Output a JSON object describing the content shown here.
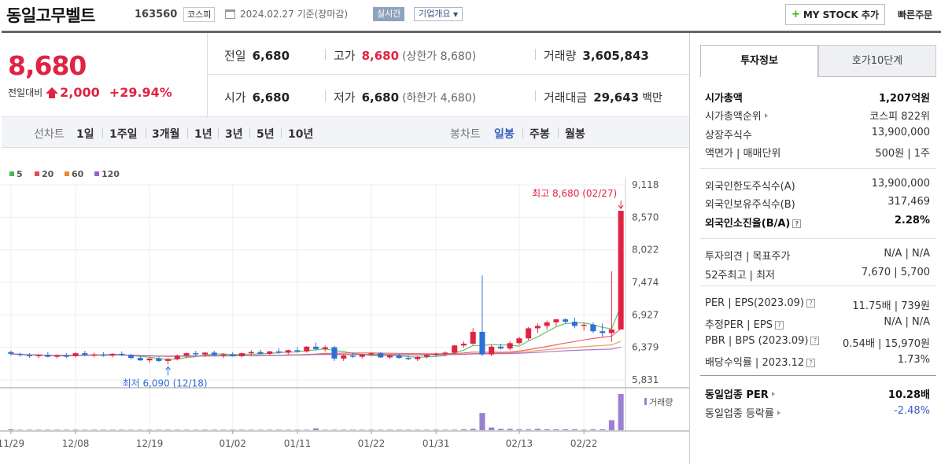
{
  "header": {
    "name": "동일고무벨트",
    "code": "163560",
    "market": "코스피",
    "date": "2024.02.27 기준(장마감)",
    "realtime": "실시간",
    "company": "기업개요",
    "mystock": "MY STOCK 추가",
    "fast_order": "빠른주문"
  },
  "price": {
    "current": "8,680",
    "compare_label": "전일대비",
    "change": "2,000",
    "change_pct": "+29.94%"
  },
  "stats": {
    "prev_label": "전일",
    "prev": "6,680",
    "high_label": "고가",
    "high": "8,680",
    "upper_limit": "(상한가 8,680)",
    "volume_label": "거래량",
    "volume": "3,605,843",
    "open_label": "시가",
    "open": "6,680",
    "low_label": "저가",
    "low": "6,680",
    "lower_limit": "(하한가 4,680)",
    "amount_label": "거래대금",
    "amount": "29,643",
    "amount_unit": "백만"
  },
  "period_bar": {
    "line_label": "선차트",
    "periods": [
      "1일",
      "1주일",
      "3개월",
      "1년",
      "3년",
      "5년",
      "10년"
    ],
    "candle_label": "봉차트",
    "candles": [
      "일봉",
      "주봉",
      "월봉"
    ]
  },
  "chart_data": {
    "type": "candlestick",
    "ma_legend": [
      "5",
      "20",
      "60",
      "120"
    ],
    "ma_colors": [
      "#4cb84c",
      "#e84a4a",
      "#f08a2c",
      "#9a5fd0"
    ],
    "up_color": "#e12343",
    "down_color": "#2f6ed8",
    "y_ticks": [
      "9,118",
      "8,570",
      "8,022",
      "7,474",
      "6,927",
      "6,379",
      "5,831"
    ],
    "ylim": [
      5831,
      9118
    ],
    "x_ticks": [
      "11/29",
      "12/08",
      "12/19",
      "01/02",
      "01/11",
      "01/22",
      "01/31",
      "02/13",
      "02/22"
    ],
    "max_annotation": "최고 8,680 (02/27)",
    "min_annotation": "최저 6,090 (12/18)",
    "volume_label": "거래량",
    "candles": [
      [
        6300,
        6320,
        6240,
        6270
      ],
      [
        6270,
        6290,
        6220,
        6250
      ],
      [
        6250,
        6280,
        6200,
        6230
      ],
      [
        6230,
        6260,
        6200,
        6250
      ],
      [
        6250,
        6300,
        6210,
        6220
      ],
      [
        6220,
        6260,
        6190,
        6240
      ],
      [
        6240,
        6280,
        6200,
        6230
      ],
      [
        6230,
        6300,
        6210,
        6280
      ],
      [
        6280,
        6320,
        6230,
        6250
      ],
      [
        6250,
        6290,
        6210,
        6260
      ],
      [
        6260,
        6300,
        6220,
        6240
      ],
      [
        6240,
        6280,
        6210,
        6270
      ],
      [
        6270,
        6310,
        6230,
        6250
      ],
      [
        6250,
        6270,
        6180,
        6200
      ],
      [
        6200,
        6240,
        6150,
        6160
      ],
      [
        6160,
        6210,
        6120,
        6190
      ],
      [
        6190,
        6220,
        6130,
        6150
      ],
      [
        6150,
        6200,
        6090,
        6180
      ],
      [
        6180,
        6260,
        6160,
        6240
      ],
      [
        6240,
        6290,
        6200,
        6280
      ],
      [
        6280,
        6320,
        6240,
        6260
      ],
      [
        6260,
        6300,
        6220,
        6290
      ],
      [
        6290,
        6320,
        6230,
        6250
      ],
      [
        6250,
        6280,
        6200,
        6260
      ],
      [
        6260,
        6300,
        6220,
        6230
      ],
      [
        6230,
        6290,
        6210,
        6280
      ],
      [
        6280,
        6330,
        6250,
        6300
      ],
      [
        6300,
        6340,
        6260,
        6270
      ],
      [
        6270,
        6320,
        6250,
        6310
      ],
      [
        6310,
        6360,
        6270,
        6290
      ],
      [
        6290,
        6340,
        6260,
        6330
      ],
      [
        6330,
        6380,
        6290,
        6310
      ],
      [
        6310,
        6400,
        6290,
        6390
      ],
      [
        6390,
        6460,
        6330,
        6350
      ],
      [
        6350,
        6410,
        6310,
        6380
      ],
      [
        6380,
        6400,
        6150,
        6190
      ],
      [
        6190,
        6260,
        6150,
        6240
      ],
      [
        6240,
        6290,
        6200,
        6220
      ],
      [
        6220,
        6270,
        6190,
        6260
      ],
      [
        6260,
        6300,
        6230,
        6280
      ],
      [
        6280,
        6300,
        6200,
        6210
      ],
      [
        6210,
        6260,
        6180,
        6240
      ],
      [
        6240,
        6270,
        6190,
        6200
      ],
      [
        6200,
        6240,
        6160,
        6180
      ],
      [
        6180,
        6230,
        6150,
        6220
      ],
      [
        6220,
        6270,
        6190,
        6250
      ],
      [
        6250,
        6290,
        6220,
        6270
      ],
      [
        6270,
        6310,
        6230,
        6290
      ],
      [
        6290,
        6420,
        6260,
        6410
      ],
      [
        6410,
        6480,
        6370,
        6440
      ],
      [
        6440,
        6700,
        6420,
        6640
      ],
      [
        6640,
        7590,
        6230,
        6260
      ],
      [
        6260,
        6420,
        6230,
        6390
      ],
      [
        6390,
        6440,
        6340,
        6360
      ],
      [
        6360,
        6480,
        6330,
        6450
      ],
      [
        6450,
        6560,
        6420,
        6530
      ],
      [
        6530,
        6720,
        6500,
        6700
      ],
      [
        6700,
        6780,
        6620,
        6740
      ],
      [
        6740,
        6830,
        6680,
        6800
      ],
      [
        6800,
        6860,
        6740,
        6850
      ],
      [
        6850,
        6870,
        6780,
        6810
      ],
      [
        6810,
        6880,
        6700,
        6740
      ],
      [
        6740,
        6790,
        6660,
        6760
      ],
      [
        6760,
        6800,
        6620,
        6650
      ],
      [
        6650,
        6780,
        6560,
        6620
      ],
      [
        6620,
        7660,
        6470,
        6680
      ],
      [
        6680,
        8680,
        6680,
        8680
      ]
    ],
    "volumes": [
      2,
      1,
      1,
      1,
      1,
      1,
      1,
      1,
      1,
      1,
      1,
      1,
      1,
      1,
      1,
      1,
      1,
      1,
      1,
      1,
      1,
      1,
      1,
      1,
      1,
      1,
      1,
      1,
      1,
      1,
      1,
      1,
      1,
      4,
      1,
      1,
      1,
      1,
      1,
      1,
      1,
      1,
      1,
      1,
      1,
      1,
      1,
      1,
      1,
      2,
      3,
      38,
      6,
      3,
      3,
      2,
      2,
      3,
      2,
      2,
      2,
      2,
      1,
      2,
      2,
      22,
      80
    ]
  },
  "info_tabs": [
    "투자정보",
    "호가10단계"
  ],
  "info": [
    {
      "k": "시가총액",
      "v": "1,207억원",
      "bold": true
    },
    {
      "k": "시가총액순위",
      "v": "코스피 822위",
      "tri": true
    },
    {
      "k": "상장주식수",
      "v": "13,900,000"
    },
    {
      "k": "액면가 | 매매단위",
      "v": "500원 | 1주"
    },
    {
      "k": "외국인한도주식수(A)",
      "v": "13,900,000"
    },
    {
      "k": "외국인보유주식수(B)",
      "v": "317,469"
    },
    {
      "k": "외국인소진율(B/A)",
      "v": "2.28%",
      "bold": true,
      "q": true
    },
    {
      "k": "투자의견 | 목표주가",
      "v": "N/A | N/A"
    },
    {
      "k": "52주최고 | 최저",
      "v": "7,670 | 5,700"
    },
    {
      "k": "PER | EPS(2023.09)",
      "v": "11.75배 | 739원",
      "q": true
    },
    {
      "k": "추정PER | EPS",
      "v": "N/A | N/A",
      "q": true
    },
    {
      "k": "PBR | BPS (2023.09)",
      "v": "0.54배 | 15,970원",
      "q": true
    },
    {
      "k": "배당수익률 | 2023.12",
      "v": "1.73%",
      "q": true
    },
    {
      "k": "동일업종 PER",
      "v": "10.28배",
      "bold": true,
      "tri": true
    },
    {
      "k": "동일업종 등락률",
      "v": "-2.48%",
      "tri": true,
      "blue": true
    }
  ]
}
